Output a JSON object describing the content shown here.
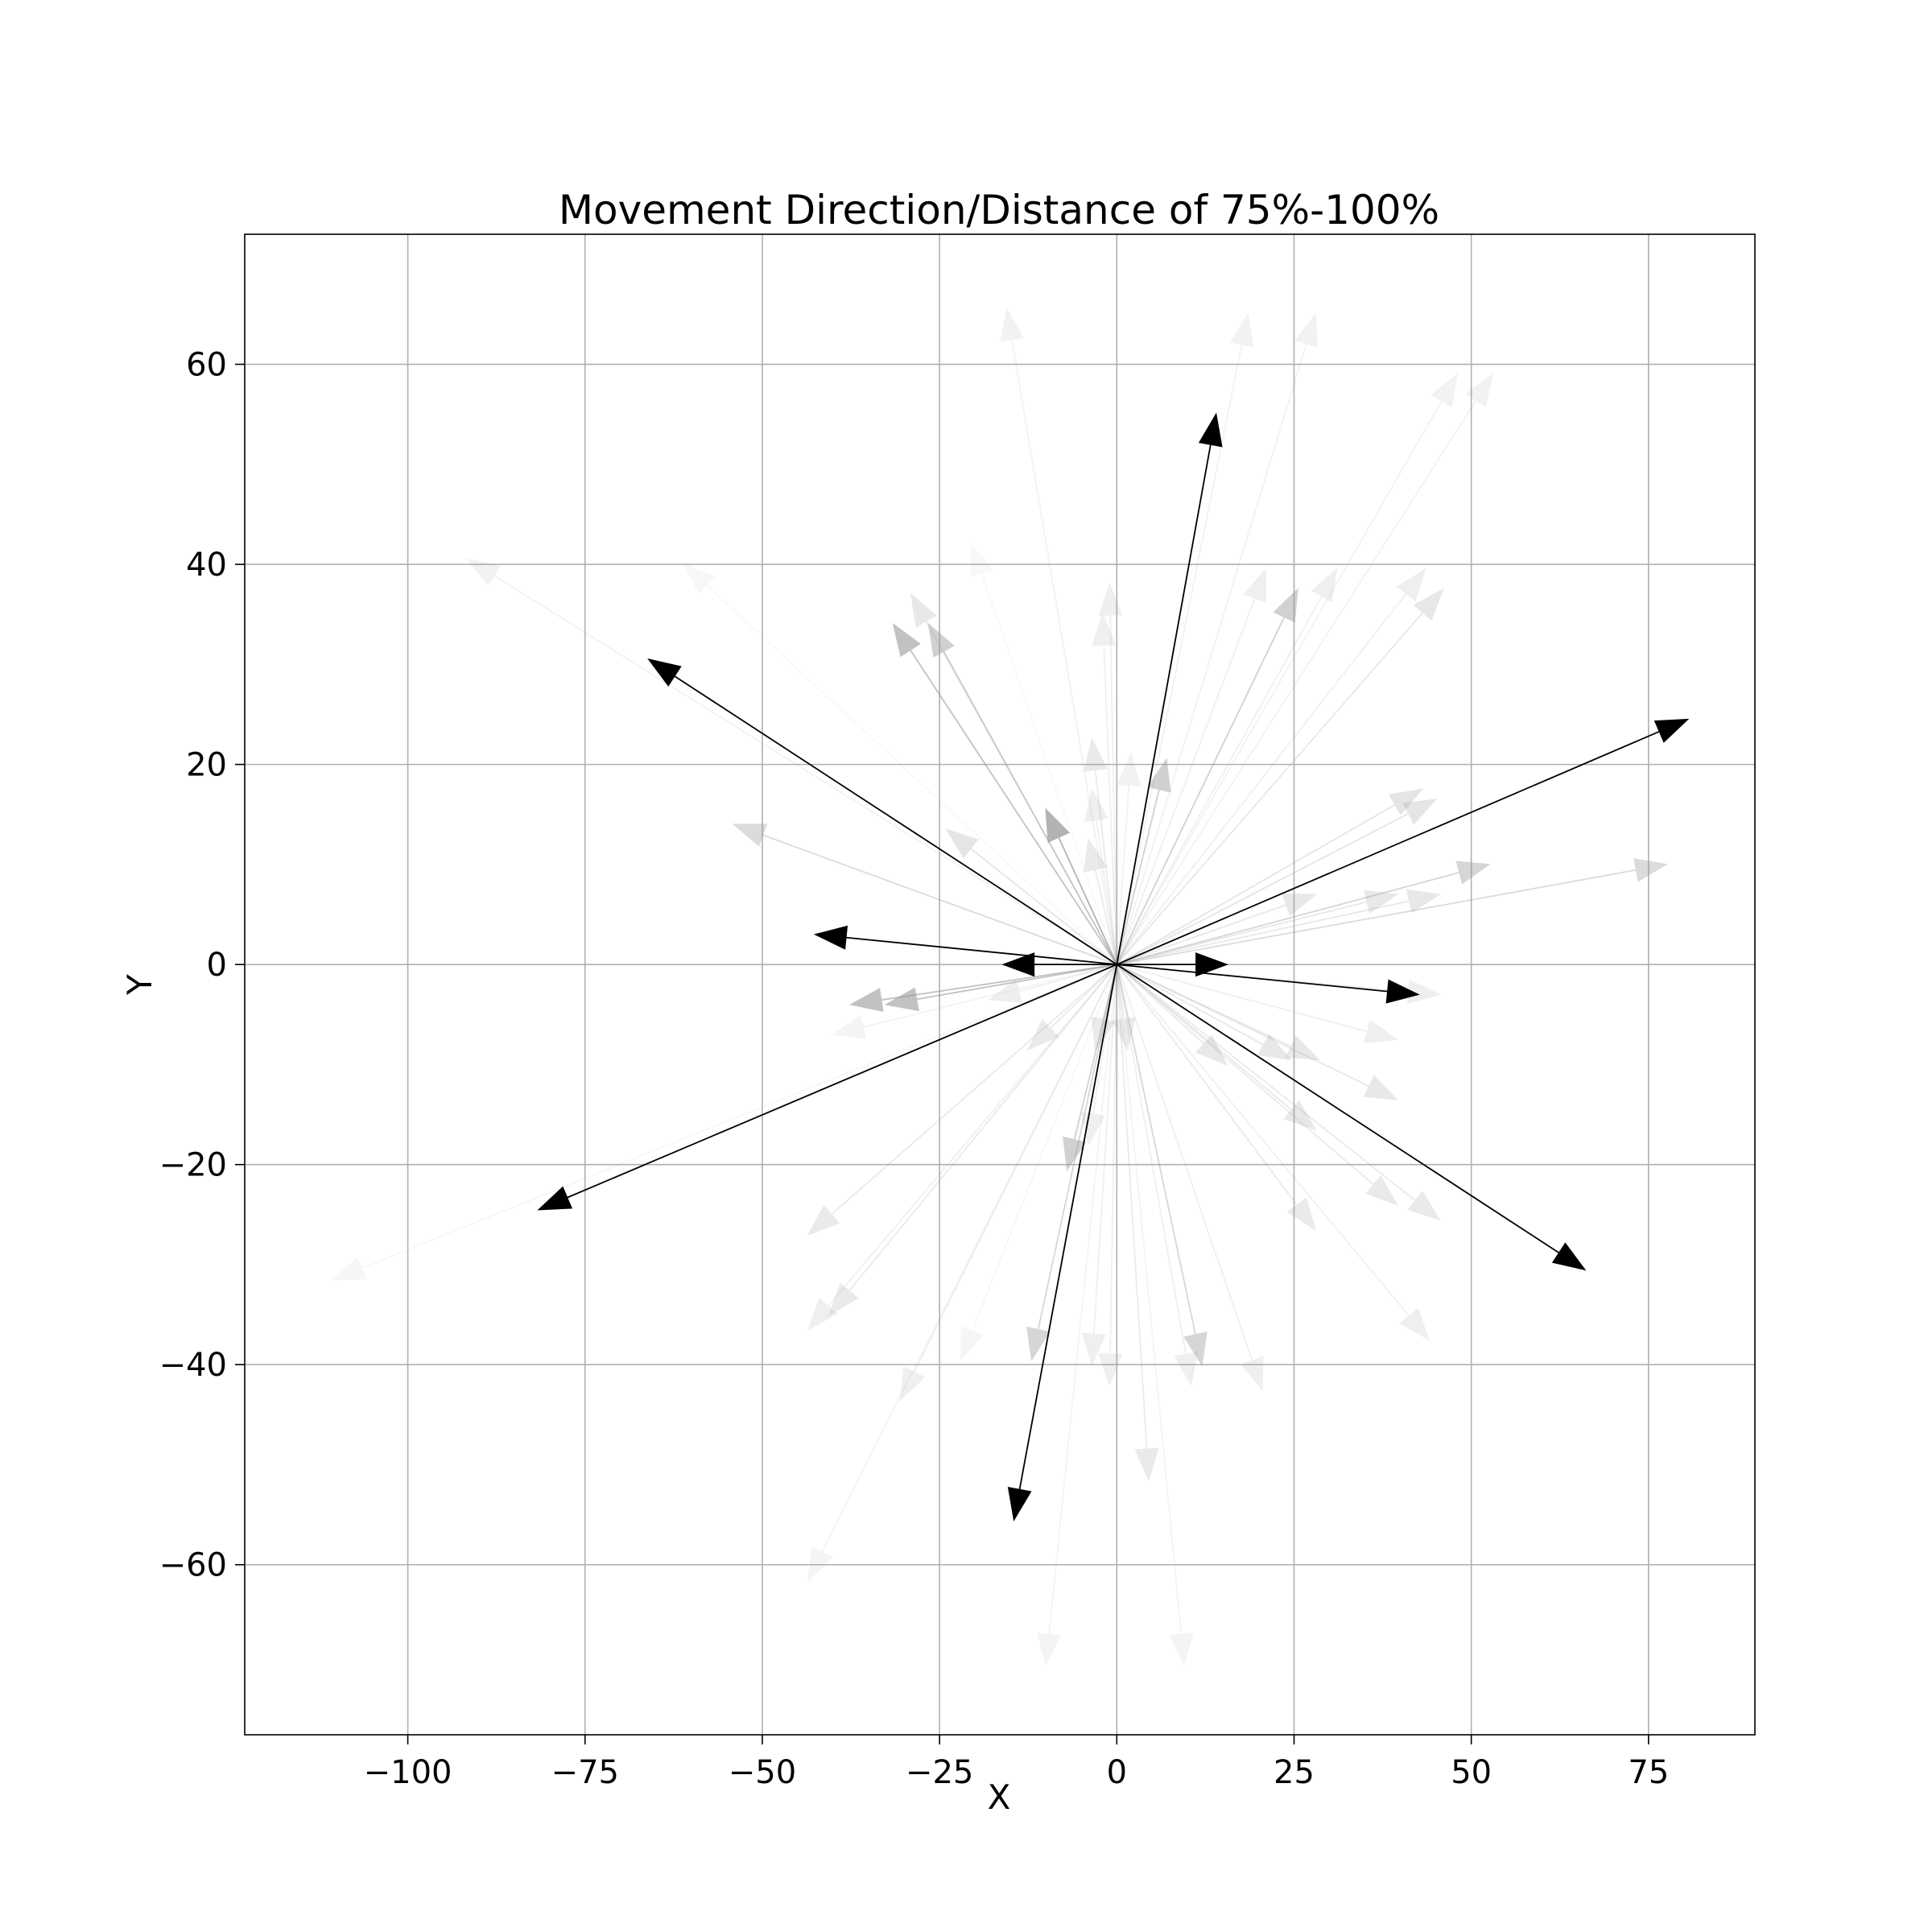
{
  "chart_data": {
    "type": "quiver",
    "title": "Movement Direction/Distance of 75%-100%",
    "xlabel": "X",
    "ylabel": "Y",
    "xlim": [
      -123,
      90
    ],
    "ylim": [
      -77,
      73
    ],
    "xticks": [
      -100,
      -75,
      -50,
      -25,
      0,
      25,
      50,
      75
    ],
    "yticks": [
      -60,
      -40,
      -20,
      0,
      20,
      40,
      60
    ],
    "grid": true,
    "colors": {
      "strong": "#000000",
      "faint": "#c8c8c8"
    },
    "strong_arrows": [
      {
        "x": 14,
        "y": 55
      },
      {
        "x": -66,
        "y": 30.5
      },
      {
        "x": 80.5,
        "y": 24.5
      },
      {
        "x": -42.5,
        "y": 3
      },
      {
        "x": -16,
        "y": 0
      },
      {
        "x": 15.5,
        "y": 0
      },
      {
        "x": 42.5,
        "y": -3
      },
      {
        "x": -81.5,
        "y": -24.5
      },
      {
        "x": 66,
        "y": -30.5
      },
      {
        "x": -14.5,
        "y": -55.5
      }
    ],
    "faint_arrows": [
      {
        "x": -15.5,
        "y": 65.5,
        "a": 0.12
      },
      {
        "x": 18.5,
        "y": 65,
        "a": 0.12
      },
      {
        "x": 28,
        "y": 65,
        "a": 0.12
      },
      {
        "x": 48,
        "y": 59,
        "a": 0.12
      },
      {
        "x": 53,
        "y": 59,
        "a": 0.12
      },
      {
        "x": -91.5,
        "y": 40.5,
        "a": 0.12
      },
      {
        "x": -61,
        "y": 40,
        "a": 0.06
      },
      {
        "x": -20.5,
        "y": 42,
        "a": 0.06
      },
      {
        "x": 21,
        "y": 39.5,
        "a": 0.15
      },
      {
        "x": 31,
        "y": 39.5,
        "a": 0.15
      },
      {
        "x": 43.5,
        "y": 39.5,
        "a": 0.15
      },
      {
        "x": 25.5,
        "y": 37.5,
        "a": 0.45
      },
      {
        "x": 46,
        "y": 37.5,
        "a": 0.22
      },
      {
        "x": -29,
        "y": 37,
        "a": 0.22
      },
      {
        "x": -1,
        "y": 38,
        "a": 0.15
      },
      {
        "x": -2,
        "y": 35,
        "a": 0.15
      },
      {
        "x": -31.5,
        "y": 34,
        "a": 0.6
      },
      {
        "x": -26.5,
        "y": 34,
        "a": 0.45
      },
      {
        "x": -3.5,
        "y": 22.5,
        "a": 0.2
      },
      {
        "x": 2,
        "y": 21,
        "a": 0.12
      },
      {
        "x": 7,
        "y": 20.5,
        "a": 0.45
      },
      {
        "x": -3.5,
        "y": 17.5,
        "a": 0.15
      },
      {
        "x": 43,
        "y": 17.5,
        "a": 0.25
      },
      {
        "x": 45,
        "y": 16.5,
        "a": 0.25
      },
      {
        "x": -10,
        "y": 15.5,
        "a": 0.75
      },
      {
        "x": -54,
        "y": 14,
        "a": 0.35
      },
      {
        "x": -24,
        "y": 13.5,
        "a": 0.25
      },
      {
        "x": -4,
        "y": 12.5,
        "a": 0.2
      },
      {
        "x": 52.5,
        "y": 10,
        "a": 0.4
      },
      {
        "x": 77.5,
        "y": 10,
        "a": 0.35
      },
      {
        "x": 28,
        "y": 7,
        "a": 0.22
      },
      {
        "x": 39.5,
        "y": 7,
        "a": 0.22
      },
      {
        "x": 45.5,
        "y": 7,
        "a": 0.22
      },
      {
        "x": -37.5,
        "y": -4,
        "a": 0.6
      },
      {
        "x": -32.5,
        "y": -4,
        "a": 0.6
      },
      {
        "x": -18,
        "y": -3.5,
        "a": 0.15
      },
      {
        "x": 45.5,
        "y": -3,
        "a": 0.15
      },
      {
        "x": -40,
        "y": -7,
        "a": 0.1
      },
      {
        "x": 39.5,
        "y": -7.5,
        "a": 0.15
      },
      {
        "x": -12.5,
        "y": -8.5,
        "a": 0.2
      },
      {
        "x": -3,
        "y": -8.5,
        "a": 0.2
      },
      {
        "x": 1.5,
        "y": -8.5,
        "a": 0.2
      },
      {
        "x": 24.5,
        "y": -9.5,
        "a": 0.22
      },
      {
        "x": 28.5,
        "y": -9.5,
        "a": 0.22
      },
      {
        "x": 15.5,
        "y": -10,
        "a": 0.22
      },
      {
        "x": 39.5,
        "y": -13.5,
        "a": 0.22
      },
      {
        "x": 28,
        "y": -16.5,
        "a": 0.22
      },
      {
        "x": -4,
        "y": -18,
        "a": 0.15
      },
      {
        "x": -7,
        "y": -20.5,
        "a": 0.45
      },
      {
        "x": 39.5,
        "y": -24,
        "a": 0.2
      },
      {
        "x": 45.5,
        "y": -25.5,
        "a": 0.2
      },
      {
        "x": 28,
        "y": -26.5,
        "a": 0.2
      },
      {
        "x": -43.5,
        "y": -27,
        "a": 0.2
      },
      {
        "x": -40.5,
        "y": -35,
        "a": 0.2
      },
      {
        "x": -43.5,
        "y": -36.5,
        "a": 0.15
      },
      {
        "x": 44,
        "y": -37.5,
        "a": 0.15
      },
      {
        "x": -12,
        "y": -39.5,
        "a": 0.4
      },
      {
        "x": 12,
        "y": -40,
        "a": 0.4
      },
      {
        "x": -22,
        "y": -39.5,
        "a": 0.08
      },
      {
        "x": -3.5,
        "y": -40,
        "a": 0.15
      },
      {
        "x": -1,
        "y": -42,
        "a": 0.15
      },
      {
        "x": 10.5,
        "y": -42,
        "a": 0.15
      },
      {
        "x": 20.5,
        "y": -42.5,
        "a": 0.15
      },
      {
        "x": -30.5,
        "y": -43.5,
        "a": 0.15
      },
      {
        "x": 4.5,
        "y": -51.5,
        "a": 0.2
      },
      {
        "x": -43.5,
        "y": -61.5,
        "a": 0.1
      },
      {
        "x": -10,
        "y": -70,
        "a": 0.1
      },
      {
        "x": 9.5,
        "y": -70,
        "a": 0.1
      },
      {
        "x": -110.5,
        "y": -31.5,
        "a": 0.08
      }
    ]
  }
}
